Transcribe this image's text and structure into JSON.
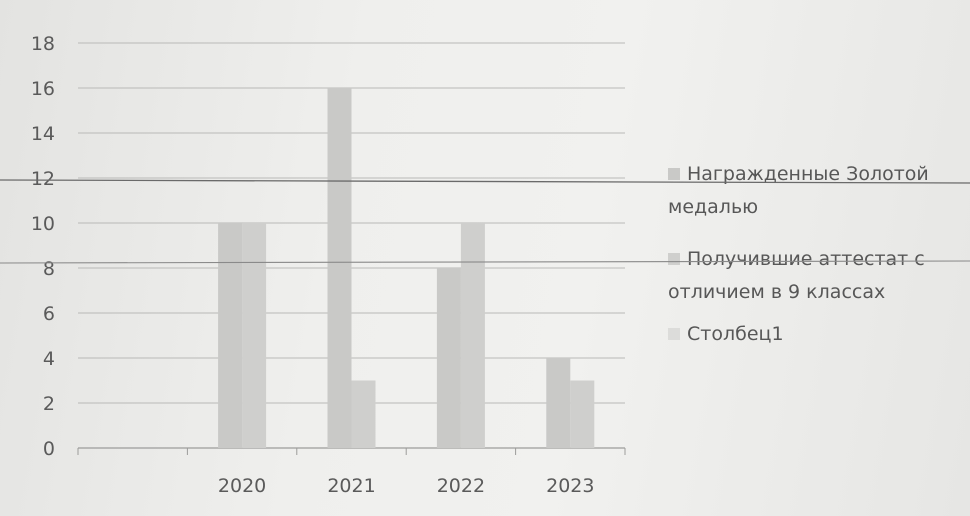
{
  "chart_data": {
    "type": "bar",
    "title": "",
    "xlabel": "",
    "ylabel": "",
    "categories": [
      "",
      "2020",
      "2021",
      "2022",
      "2023"
    ],
    "series": [
      {
        "name": "Награжденные Золотой медалью",
        "values": [
          null,
          10,
          16,
          8,
          4
        ],
        "color": "#c9c9c7"
      },
      {
        "name": "Получившие аттестат с отличием в 9 классах",
        "values": [
          null,
          10,
          3,
          10,
          3
        ],
        "color": "#cfcfcd"
      },
      {
        "name": "Столбец1",
        "values": [
          null,
          null,
          null,
          null,
          null
        ],
        "color": "#dcdcda"
      }
    ],
    "ylim": [
      0,
      18
    ],
    "yticks": [
      0,
      2,
      4,
      6,
      8,
      10,
      12,
      14,
      16,
      18
    ],
    "grid": true,
    "legend_placement": "right"
  },
  "legend": {
    "items": [
      {
        "lines": [
          "Награжденные Золотой",
          "медалью"
        ]
      },
      {
        "lines": [
          "Получившие аттестат с",
          "отличием в 9 классах"
        ]
      },
      {
        "lines": [
          "Столбец1"
        ]
      }
    ]
  }
}
